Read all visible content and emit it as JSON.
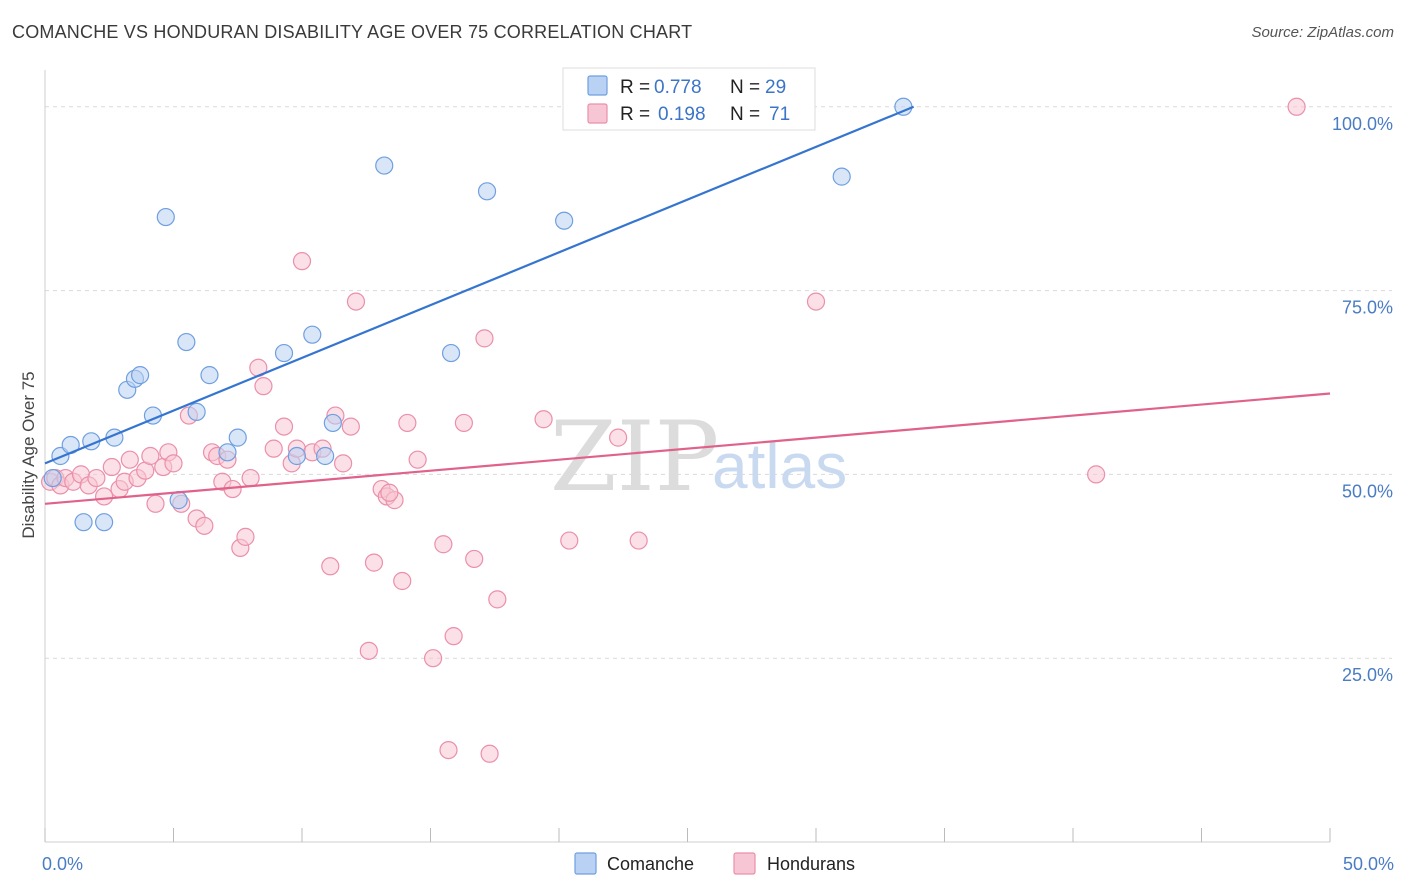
{
  "title": "COMANCHE VS HONDURAN DISABILITY AGE OVER 75 CORRELATION CHART",
  "source": "Source: ZipAtlas.com",
  "watermark": {
    "zip": "ZIP",
    "atlas": "atlas"
  },
  "chart_data": {
    "type": "scatter",
    "ylabel": "Disability Age Over 75",
    "xlim": [
      0,
      50
    ],
    "ylim": [
      0,
      105
    ],
    "x_tick_labels": [
      {
        "value": 0,
        "label": "0.0%"
      },
      {
        "value": 50,
        "label": "50.0%"
      }
    ],
    "y_tick_labels": [
      {
        "value": 25,
        "label": "25.0%"
      },
      {
        "value": 50,
        "label": "50.0%"
      },
      {
        "value": 75,
        "label": "75.0%"
      },
      {
        "value": 100,
        "label": "100.0%"
      }
    ],
    "legend": {
      "position": "top-center",
      "entries": [
        {
          "r_label": "R =",
          "r": "0.778",
          "n_label": "N =",
          "n": "29"
        },
        {
          "r_label": "R =",
          "r": "0.198",
          "n_label": "N =",
          "n": "71"
        }
      ]
    },
    "series": [
      {
        "name": "Comanche",
        "color": "#6f9fe0",
        "fill": "#b9d1f2",
        "line_color": "#3575cf",
        "trend": {
          "x0": 0,
          "y0": 51.5,
          "x1": 33.8,
          "y1": 100
        },
        "points": [
          [
            0.3,
            49.5
          ],
          [
            0.6,
            52.5
          ],
          [
            1.0,
            54.0
          ],
          [
            1.5,
            43.5
          ],
          [
            1.8,
            54.5
          ],
          [
            2.3,
            43.5
          ],
          [
            2.7,
            55.0
          ],
          [
            3.2,
            61.5
          ],
          [
            3.5,
            63.0
          ],
          [
            3.7,
            63.5
          ],
          [
            4.2,
            58.0
          ],
          [
            4.7,
            85.0
          ],
          [
            5.2,
            46.5
          ],
          [
            5.5,
            68.0
          ],
          [
            5.9,
            58.5
          ],
          [
            6.4,
            63.5
          ],
          [
            7.1,
            53.0
          ],
          [
            7.5,
            55.0
          ],
          [
            9.3,
            66.5
          ],
          [
            9.8,
            52.5
          ],
          [
            10.4,
            69.0
          ],
          [
            10.9,
            52.5
          ],
          [
            11.2,
            57.0
          ],
          [
            13.2,
            92.0
          ],
          [
            15.8,
            66.5
          ],
          [
            17.2,
            88.5
          ],
          [
            20.2,
            84.5
          ],
          [
            31.0,
            90.5
          ],
          [
            33.4,
            100.0
          ]
        ]
      },
      {
        "name": "Hondurans",
        "color": "#eb8faa",
        "fill": "#f7c6d4",
        "line_color": "#e0628a",
        "trend": {
          "x0": 0,
          "y0": 46.0,
          "x1": 50,
          "y1": 61.0
        },
        "points": [
          [
            0.2,
            49.0
          ],
          [
            0.4,
            49.5
          ],
          [
            0.6,
            48.5
          ],
          [
            0.8,
            49.5
          ],
          [
            1.1,
            49.0
          ],
          [
            1.4,
            50.0
          ],
          [
            1.7,
            48.5
          ],
          [
            2.0,
            49.5
          ],
          [
            2.3,
            47.0
          ],
          [
            2.6,
            51.0
          ],
          [
            2.9,
            48.0
          ],
          [
            3.1,
            49.0
          ],
          [
            3.3,
            52.0
          ],
          [
            3.6,
            49.5
          ],
          [
            3.9,
            50.5
          ],
          [
            4.1,
            52.5
          ],
          [
            4.3,
            46.0
          ],
          [
            4.6,
            51.0
          ],
          [
            4.8,
            53.0
          ],
          [
            5.0,
            51.5
          ],
          [
            5.3,
            46.0
          ],
          [
            5.6,
            58.0
          ],
          [
            5.9,
            44.0
          ],
          [
            6.2,
            43.0
          ],
          [
            6.5,
            53.0
          ],
          [
            6.7,
            52.5
          ],
          [
            6.9,
            49.0
          ],
          [
            7.1,
            52.0
          ],
          [
            7.3,
            48.0
          ],
          [
            7.6,
            40.0
          ],
          [
            7.8,
            41.5
          ],
          [
            8.0,
            49.5
          ],
          [
            8.3,
            64.5
          ],
          [
            8.5,
            62.0
          ],
          [
            8.9,
            53.5
          ],
          [
            9.3,
            56.5
          ],
          [
            9.6,
            51.5
          ],
          [
            9.8,
            53.5
          ],
          [
            10.0,
            79.0
          ],
          [
            10.4,
            53.0
          ],
          [
            10.8,
            53.5
          ],
          [
            11.1,
            37.5
          ],
          [
            11.3,
            58.0
          ],
          [
            11.6,
            51.5
          ],
          [
            11.9,
            56.5
          ],
          [
            12.1,
            73.5
          ],
          [
            12.6,
            26.0
          ],
          [
            12.8,
            38.0
          ],
          [
            13.1,
            48.0
          ],
          [
            13.3,
            47.0
          ],
          [
            13.6,
            46.5
          ],
          [
            13.9,
            35.5
          ],
          [
            14.1,
            57.0
          ],
          [
            14.5,
            52.0
          ],
          [
            15.5,
            40.5
          ],
          [
            15.9,
            28.0
          ],
          [
            15.7,
            12.5
          ],
          [
            15.1,
            25.0
          ],
          [
            16.3,
            57.0
          ],
          [
            16.7,
            38.5
          ],
          [
            17.1,
            68.5
          ],
          [
            17.3,
            12.0
          ],
          [
            17.6,
            33.0
          ],
          [
            19.4,
            57.5
          ],
          [
            20.4,
            41.0
          ],
          [
            22.3,
            55.0
          ],
          [
            23.1,
            41.0
          ],
          [
            30.0,
            73.5
          ],
          [
            40.9,
            50.0
          ],
          [
            48.7,
            100.0
          ],
          [
            13.4,
            47.5
          ]
        ]
      }
    ]
  },
  "bottom_legend": [
    {
      "label": "Comanche"
    },
    {
      "label": "Hondurans"
    }
  ]
}
